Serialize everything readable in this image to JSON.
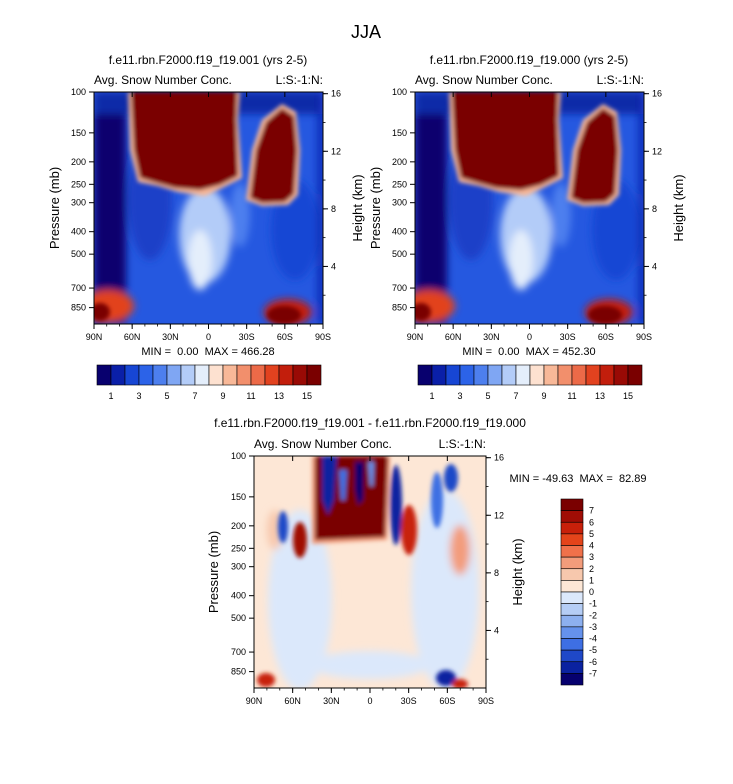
{
  "figure": {
    "title": "JJA"
  },
  "chart_data": [
    {
      "type": "heatmap",
      "title": "f.e11.rbn.F2000.f19_f19.001 (yrs 2-5)",
      "left_label": "Avg. Snow Number Conc.",
      "right_label": "L:S:-1:N:",
      "xlabel": "",
      "ylabel": "Pressure (mb)",
      "y2label": "Height (km)",
      "x_ticks": [
        "90N",
        "60N",
        "30N",
        "0",
        "30S",
        "60S",
        "90S"
      ],
      "y_ticks": [
        "100",
        "150",
        "200",
        "250",
        "300",
        "400",
        "500",
        "700",
        "850"
      ],
      "y2_ticks": [
        "16",
        "12",
        "8",
        "4"
      ],
      "stats": "MIN =  0.00  MAX = 466.28",
      "colorbar_labels": [
        "1",
        "3",
        "5",
        "7",
        "9",
        "11",
        "13",
        "15"
      ]
    },
    {
      "type": "heatmap",
      "title": "f.e11.rbn.F2000.f19_f19.000 (yrs 2-5)",
      "left_label": "Avg. Snow Number Conc.",
      "right_label": "L:S:-1:N:",
      "xlabel": "",
      "ylabel": "Pressure (mb)",
      "y2label": "Height (km)",
      "x_ticks": [
        "90N",
        "60N",
        "30N",
        "0",
        "30S",
        "60S",
        "90S"
      ],
      "y_ticks": [
        "100",
        "150",
        "200",
        "250",
        "300",
        "400",
        "500",
        "700",
        "850"
      ],
      "y2_ticks": [
        "16",
        "12",
        "8",
        "4"
      ],
      "stats": "MIN =  0.00  MAX = 452.30",
      "colorbar_labels": [
        "1",
        "3",
        "5",
        "7",
        "9",
        "11",
        "13",
        "15"
      ]
    },
    {
      "type": "heatmap",
      "title": "f.e11.rbn.F2000.f19_f19.001 - f.e11.rbn.F2000.f19_f19.000",
      "left_label": "Avg. Snow Number Conc.",
      "right_label": "L:S:-1:N:",
      "xlabel": "",
      "ylabel": "Pressure (mb)",
      "y2label": "Height (km)",
      "x_ticks": [
        "90N",
        "60N",
        "30N",
        "0",
        "30S",
        "60S",
        "90S"
      ],
      "y_ticks": [
        "100",
        "150",
        "200",
        "250",
        "300",
        "400",
        "500",
        "700",
        "850"
      ],
      "y2_ticks": [
        "16",
        "12",
        "8",
        "4"
      ],
      "stats": "MIN = -49.63  MAX =  82.89",
      "colorbar_labels": [
        "7",
        "6",
        "5",
        "4",
        "3",
        "2",
        "1",
        "0",
        "-1",
        "-2",
        "-3",
        "-4",
        "-5",
        "-6",
        "-7"
      ]
    }
  ],
  "palettes": {
    "sequential": [
      "#08006e",
      "#0a1fa8",
      "#1746d4",
      "#2c63e8",
      "#4d7fee",
      "#7fa6f3",
      "#b3ccf8",
      "#e4eefb",
      "#fde1d0",
      "#f8b898",
      "#f28f6c",
      "#ec6a48",
      "#e2421f",
      "#c21e0c",
      "#990a05",
      "#7a0000"
    ],
    "diverging": [
      "#7a0000",
      "#a00d05",
      "#c8200a",
      "#e4441a",
      "#f0714a",
      "#f39c7b",
      "#f7c8ad",
      "#fde7d6",
      "#dbe8fb",
      "#b5cdf5",
      "#8db0ef",
      "#6592ec",
      "#3e6fe3",
      "#1f48c8",
      "#0a22a0",
      "#06006e"
    ]
  }
}
